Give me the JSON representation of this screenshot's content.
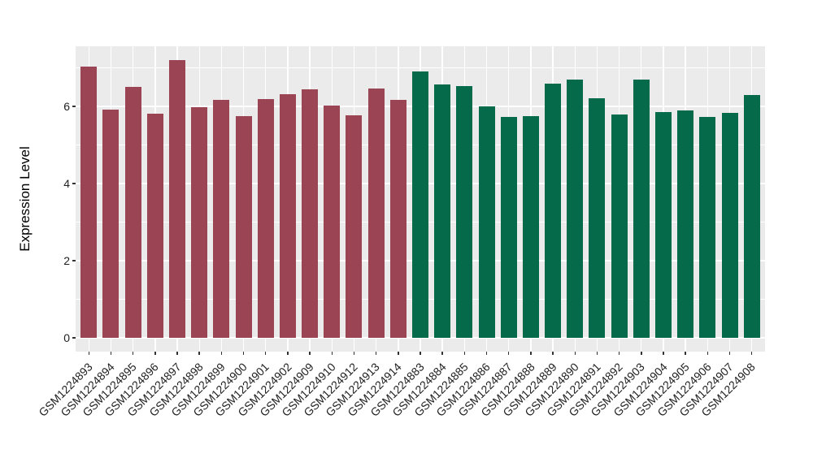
{
  "chart_data": {
    "type": "bar",
    "title": "",
    "xlabel": "",
    "ylabel": "Expression Level",
    "y_major_ticks": [
      0,
      2,
      4,
      6
    ],
    "y_tick_labels": [
      "0",
      "2",
      "4",
      "6"
    ],
    "y_minor_ticks": [
      1,
      3,
      5,
      7
    ],
    "ylim": [
      -0.36,
      7.56
    ],
    "grid": true,
    "legend_position": "none",
    "panel_bg": "#EBEBEB",
    "grid_color": "#FFFFFF",
    "tick_color": "#333333",
    "group_colors": {
      "group1": "#9A4454",
      "group2": "#046A4A"
    },
    "categories": [
      "GSM1224893",
      "GSM1224894",
      "GSM1224895",
      "GSM1224896",
      "GSM1224897",
      "GSM1224898",
      "GSM1224899",
      "GSM1224900",
      "GSM1224901",
      "GSM1224902",
      "GSM1224909",
      "GSM1224910",
      "GSM1224912",
      "GSM1224913",
      "GSM1224914",
      "GSM1224883",
      "GSM1224884",
      "GSM1224885",
      "GSM1224886",
      "GSM1224887",
      "GSM1224888",
      "GSM1224889",
      "GSM1224890",
      "GSM1224891",
      "GSM1224892",
      "GSM1224903",
      "GSM1224904",
      "GSM1224905",
      "GSM1224906",
      "GSM1224907",
      "GSM1224908"
    ],
    "values": [
      7.03,
      5.92,
      6.51,
      5.81,
      7.2,
      5.99,
      6.17,
      5.75,
      6.19,
      6.32,
      6.44,
      6.02,
      5.78,
      6.46,
      6.16,
      6.9,
      6.58,
      6.53,
      6.01,
      5.72,
      5.75,
      6.59,
      6.69,
      6.22,
      5.79,
      6.69,
      5.86,
      5.89,
      5.73,
      5.84,
      6.29
    ],
    "groups": [
      "group1",
      "group1",
      "group1",
      "group1",
      "group1",
      "group1",
      "group1",
      "group1",
      "group1",
      "group1",
      "group1",
      "group1",
      "group1",
      "group1",
      "group1",
      "group2",
      "group2",
      "group2",
      "group2",
      "group2",
      "group2",
      "group2",
      "group2",
      "group2",
      "group2",
      "group2",
      "group2",
      "group2",
      "group2",
      "group2",
      "group2"
    ]
  }
}
